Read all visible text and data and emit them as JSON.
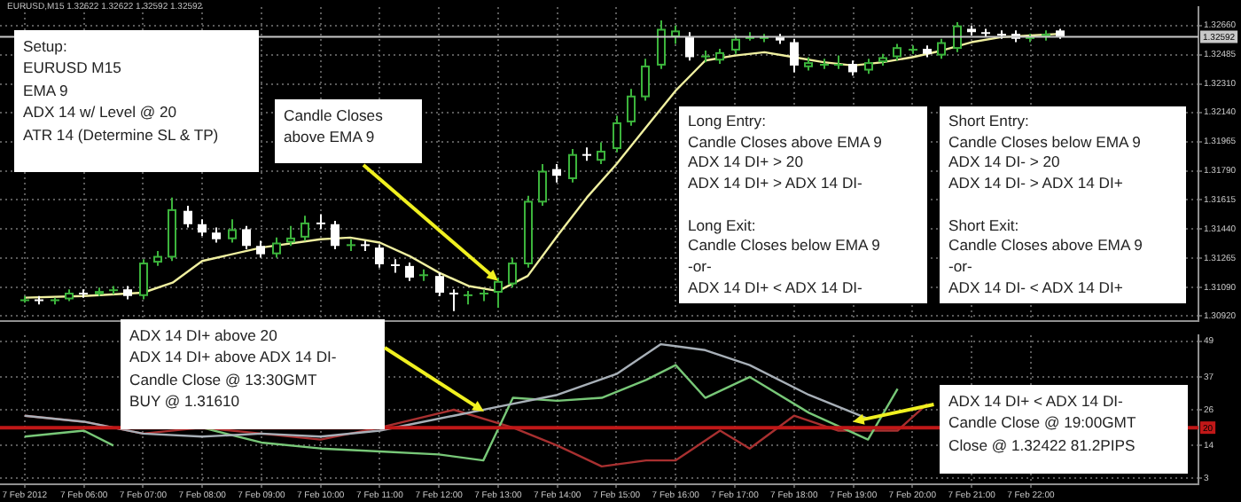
{
  "chart_data": [
    {
      "type": "candlestick",
      "title": "EURUSD,M15 1.32622 1.32622 1.32592 1.32592",
      "x": [
        "2012-02-07T05:00",
        "2012-02-07T05:15",
        "2012-02-07T05:30",
        "2012-02-07T05:45",
        "2012-02-07T06:00",
        "2012-02-07T06:15",
        "2012-02-07T06:30",
        "2012-02-07T06:45",
        "2012-02-07T07:00",
        "2012-02-07T07:15",
        "2012-02-07T07:30",
        "2012-02-07T07:45",
        "2012-02-07T08:00",
        "2012-02-07T08:15",
        "2012-02-07T08:30",
        "2012-02-07T08:45",
        "2012-02-07T09:00",
        "2012-02-07T09:15",
        "2012-02-07T09:30",
        "2012-02-07T09:45",
        "2012-02-07T10:00",
        "2012-02-07T10:15",
        "2012-02-07T10:30",
        "2012-02-07T10:45",
        "2012-02-07T11:00",
        "2012-02-07T11:15",
        "2012-02-07T11:30",
        "2012-02-07T11:45",
        "2012-02-07T12:00",
        "2012-02-07T12:15",
        "2012-02-07T12:30",
        "2012-02-07T12:45",
        "2012-02-07T13:00",
        "2012-02-07T13:15",
        "2012-02-07T13:30",
        "2012-02-07T13:45",
        "2012-02-07T14:00",
        "2012-02-07T14:15",
        "2012-02-07T14:30",
        "2012-02-07T14:45",
        "2012-02-07T15:00",
        "2012-02-07T15:15",
        "2012-02-07T15:30",
        "2012-02-07T15:45",
        "2012-02-07T16:00",
        "2012-02-07T16:15",
        "2012-02-07T16:30",
        "2012-02-07T16:45",
        "2012-02-07T17:00",
        "2012-02-07T17:15",
        "2012-02-07T17:30",
        "2012-02-07T17:45",
        "2012-02-07T18:00",
        "2012-02-07T18:15",
        "2012-02-07T18:30",
        "2012-02-07T18:45",
        "2012-02-07T19:00",
        "2012-02-07T19:15",
        "2012-02-07T19:30",
        "2012-02-07T19:45",
        "2012-02-07T20:00",
        "2012-02-07T20:15",
        "2012-02-07T20:30",
        "2012-02-07T20:45",
        "2012-02-07T21:00",
        "2012-02-07T21:15",
        "2012-02-07T21:30",
        "2012-02-07T21:45",
        "2012-02-07T22:00",
        "2012-02-07T22:15",
        "2012-02-07T22:30"
      ],
      "ohlc": [
        [
          1.3102,
          1.3104,
          1.31,
          1.3102
        ],
        [
          1.3102,
          1.3104,
          1.3099,
          1.3101
        ],
        [
          1.3101,
          1.3103,
          1.3099,
          1.3102
        ],
        [
          1.3102,
          1.3108,
          1.3101,
          1.3106
        ],
        [
          1.3106,
          1.3108,
          1.3103,
          1.3105
        ],
        [
          1.3105,
          1.3109,
          1.3104,
          1.3107
        ],
        [
          1.3107,
          1.311,
          1.3105,
          1.3108
        ],
        [
          1.3108,
          1.311,
          1.3102,
          1.3104
        ],
        [
          1.3104,
          1.3126,
          1.3102,
          1.3124
        ],
        [
          1.3124,
          1.3131,
          1.3122,
          1.3128
        ],
        [
          1.3127,
          1.3163,
          1.3125,
          1.3156
        ],
        [
          1.3155,
          1.3158,
          1.3145,
          1.3147
        ],
        [
          1.3147,
          1.315,
          1.314,
          1.3142
        ],
        [
          1.3142,
          1.3145,
          1.3136,
          1.3138
        ],
        [
          1.3138,
          1.315,
          1.3136,
          1.3144
        ],
        [
          1.3144,
          1.3146,
          1.3132,
          1.3134
        ],
        [
          1.3134,
          1.3137,
          1.3127,
          1.3129
        ],
        [
          1.3129,
          1.3139,
          1.3127,
          1.3136
        ],
        [
          1.3136,
          1.3146,
          1.3134,
          1.3139
        ],
        [
          1.3139,
          1.3152,
          1.3137,
          1.3148
        ],
        [
          1.3148,
          1.3153,
          1.3144,
          1.3147
        ],
        [
          1.3147,
          1.3149,
          1.3132,
          1.3134
        ],
        [
          1.3134,
          1.3138,
          1.3131,
          1.3135
        ],
        [
          1.3135,
          1.3137,
          1.3131,
          1.3134
        ],
        [
          1.3133,
          1.3135,
          1.3121,
          1.3123
        ],
        [
          1.3123,
          1.3126,
          1.3118,
          1.3122
        ],
        [
          1.3122,
          1.3124,
          1.3113,
          1.3115
        ],
        [
          1.3116,
          1.312,
          1.3113,
          1.3117
        ],
        [
          1.3116,
          1.3118,
          1.3104,
          1.3106
        ],
        [
          1.3106,
          1.3108,
          1.3095,
          1.3105
        ],
        [
          1.3104,
          1.3107,
          1.3099,
          1.3105
        ],
        [
          1.3105,
          1.3108,
          1.3101,
          1.3106
        ],
        [
          1.3106,
          1.3115,
          1.3097,
          1.3113
        ],
        [
          1.3111,
          1.3127,
          1.3109,
          1.3124
        ],
        [
          1.3123,
          1.3164,
          1.3121,
          1.3161
        ],
        [
          1.316,
          1.3183,
          1.3158,
          1.3179
        ],
        [
          1.318,
          1.3183,
          1.3172,
          1.3176
        ],
        [
          1.3174,
          1.3192,
          1.3172,
          1.3189
        ],
        [
          1.3189,
          1.3193,
          1.3185,
          1.3188
        ],
        [
          1.3185,
          1.3196,
          1.3183,
          1.3191
        ],
        [
          1.3192,
          1.3212,
          1.319,
          1.3208
        ],
        [
          1.3208,
          1.3228,
          1.3206,
          1.3224
        ],
        [
          1.3223,
          1.3246,
          1.3221,
          1.3242
        ],
        [
          1.3242,
          1.3269,
          1.324,
          1.3264
        ],
        [
          1.3259,
          1.3266,
          1.3255,
          1.3263
        ],
        [
          1.3259,
          1.3262,
          1.3245,
          1.3247
        ],
        [
          1.3247,
          1.3251,
          1.3244,
          1.3248
        ],
        [
          1.3245,
          1.3252,
          1.3243,
          1.325
        ],
        [
          1.3251,
          1.326,
          1.3249,
          1.3258
        ],
        [
          1.3259,
          1.3262,
          1.3257,
          1.3259
        ],
        [
          1.3259,
          1.3261,
          1.3256,
          1.3259
        ],
        [
          1.3259,
          1.3261,
          1.3255,
          1.3257
        ],
        [
          1.3256,
          1.3258,
          1.3238,
          1.3242
        ],
        [
          1.3241,
          1.3247,
          1.3239,
          1.3244
        ],
        [
          1.3243,
          1.3246,
          1.324,
          1.3243
        ],
        [
          1.3243,
          1.3248,
          1.324,
          1.3243
        ],
        [
          1.3243,
          1.3245,
          1.3236,
          1.3238
        ],
        [
          1.3239,
          1.3246,
          1.3237,
          1.3244
        ],
        [
          1.3244,
          1.3249,
          1.3242,
          1.3247
        ],
        [
          1.3247,
          1.3255,
          1.3245,
          1.3253
        ],
        [
          1.3251,
          1.3254,
          1.3249,
          1.3252
        ],
        [
          1.3252,
          1.3254,
          1.3247,
          1.3249
        ],
        [
          1.3248,
          1.3258,
          1.3246,
          1.3256
        ],
        [
          1.3252,
          1.3268,
          1.325,
          1.3266
        ],
        [
          1.3264,
          1.3266,
          1.326,
          1.3262
        ],
        [
          1.3262,
          1.3264,
          1.3259,
          1.3261
        ],
        [
          1.3261,
          1.3263,
          1.3258,
          1.326
        ],
        [
          1.3261,
          1.3263,
          1.3256,
          1.3258
        ],
        [
          1.3258,
          1.3261,
          1.3256,
          1.3259
        ],
        [
          1.3259,
          1.3263,
          1.3257,
          1.3261
        ],
        [
          1.3263,
          1.3264,
          1.3258,
          1.3259
        ]
      ],
      "colors": [
        "#3cb43c",
        "#ffffff",
        "#3cb43c",
        "#3cb43c",
        "#ffffff",
        "#3cb43c",
        "#3cb43c",
        "#ffffff",
        "#3cb43c",
        "#3cb43c",
        "#3cb43c",
        "#ffffff",
        "#ffffff",
        "#ffffff",
        "#3cb43c",
        "#ffffff",
        "#ffffff",
        "#3cb43c",
        "#3cb43c",
        "#3cb43c",
        "#ffffff",
        "#ffffff",
        "#3cb43c",
        "#ffffff",
        "#ffffff",
        "#ffffff",
        "#ffffff",
        "#3cb43c",
        "#ffffff",
        "#ffffff",
        "#3cb43c",
        "#3cb43c",
        "#3cb43c",
        "#3cb43c",
        "#3cb43c",
        "#3cb43c",
        "#ffffff",
        "#3cb43c",
        "#ffffff",
        "#3cb43c",
        "#3cb43c",
        "#3cb43c",
        "#3cb43c",
        "#3cb43c",
        "#3cb43c",
        "#ffffff",
        "#3cb43c",
        "#3cb43c",
        "#3cb43c",
        "#3cb43c",
        "#3cb43c",
        "#ffffff",
        "#ffffff",
        "#3cb43c",
        "#3cb43c",
        "#3cb43c",
        "#ffffff",
        "#3cb43c",
        "#3cb43c",
        "#3cb43c",
        "#3cb43c",
        "#ffffff",
        "#3cb43c",
        "#3cb43c",
        "#ffffff",
        "#ffffff",
        "#ffffff",
        "#ffffff",
        "#3cb43c",
        "#3cb43c",
        "#ffffff"
      ],
      "series": [
        {
          "type": "line",
          "color": "#f0f0a0",
          "x": [
            "2012-02-07T05:00",
            "2012-02-07T06:00",
            "2012-02-07T07:00",
            "2012-02-07T07:30",
            "2012-02-07T08:00",
            "2012-02-07T09:00",
            "2012-02-07T10:00",
            "2012-02-07T10:30",
            "2012-02-07T11:00",
            "2012-02-07T11:30",
            "2012-02-07T12:00",
            "2012-02-07T12:30",
            "2012-02-07T13:00",
            "2012-02-07T13:30",
            "2012-02-07T14:00",
            "2012-02-07T14:30",
            "2012-02-07T15:00",
            "2012-02-07T15:30",
            "2012-02-07T16:00",
            "2012-02-07T16:30",
            "2012-02-07T17:00",
            "2012-02-07T17:30",
            "2012-02-07T18:00",
            "2012-02-07T18:30",
            "2012-02-07T19:00",
            "2012-02-07T19:30",
            "2012-02-07T20:00",
            "2012-02-07T20:30",
            "2012-02-07T21:00",
            "2012-02-07T21:30",
            "2012-02-07T22:00",
            "2012-02-07T22:30"
          ],
          "values": [
            1.3103,
            1.3104,
            1.3106,
            1.3112,
            1.3125,
            1.3133,
            1.3138,
            1.3139,
            1.3136,
            1.3128,
            1.3118,
            1.311,
            1.3107,
            1.3116,
            1.314,
            1.3163,
            1.3183,
            1.3205,
            1.3227,
            1.3245,
            1.3248,
            1.325,
            1.3247,
            1.3244,
            1.3242,
            1.3244,
            1.3247,
            1.3251,
            1.3256,
            1.3259,
            1.326,
            1.3261
          ]
        }
      ],
      "marker": "none",
      "xlim": [
        "2012-02-07T04:35",
        "2012-02-08T00:50"
      ],
      "xticks": [
        {
          "value": "2012-02-07T05:00",
          "label": null
        },
        {
          "value": "2012-02-07T06:00",
          "label": null
        },
        {
          "value": "2012-02-07T07:00",
          "label": null
        },
        {
          "value": "2012-02-07T08:00",
          "label": null
        },
        {
          "value": "2012-02-07T09:00",
          "label": null
        },
        {
          "value": "2012-02-07T10:00",
          "label": null
        },
        {
          "value": "2012-02-07T11:00",
          "label": null
        },
        {
          "value": "2012-02-07T12:00",
          "label": null
        },
        {
          "value": "2012-02-07T13:00",
          "label": null
        },
        {
          "value": "2012-02-07T14:00",
          "label": null
        },
        {
          "value": "2012-02-07T15:00",
          "label": null
        },
        {
          "value": "2012-02-07T16:00",
          "label": null
        },
        {
          "value": "2012-02-07T17:00",
          "label": null
        },
        {
          "value": "2012-02-07T18:00",
          "label": null
        },
        {
          "value": "2012-02-07T19:00",
          "label": null
        },
        {
          "value": "2012-02-07T20:00",
          "label": null
        },
        {
          "value": "2012-02-07T21:00",
          "label": null
        },
        {
          "value": "2012-02-07T22:00",
          "label": null
        }
      ],
      "ylim": [
        1.3089,
        1.3277
      ],
      "yticks": [
        {
          "value": 1.3092,
          "label": "1.30920"
        },
        {
          "value": 1.3109,
          "label": "1.31090"
        },
        {
          "value": 1.31265,
          "label": "1.31265"
        },
        {
          "value": 1.3144,
          "label": "1.31440"
        },
        {
          "value": 1.31615,
          "label": "1.31615"
        },
        {
          "value": 1.3179,
          "label": "1.31790"
        },
        {
          "value": 1.31965,
          "label": "1.31965"
        },
        {
          "value": 1.3214,
          "label": "1.32140"
        },
        {
          "value": 1.3231,
          "label": "1.32310"
        },
        {
          "value": 1.32485,
          "label": "1.32485"
        },
        {
          "value": 1.3266,
          "label": "1.32660"
        }
      ],
      "grid": true,
      "tick_labels": "y",
      "ref_lines": [
        {
          "axis": "y",
          "value": 1.32592,
          "label": "1.32592",
          "color": "#c8c8c8"
        }
      ],
      "annotations": [
        "Setup:\nEURUSD M15\nEMA 9\nADX 14 w/ Level @ 20\nATR 14 (Determine SL & TP)",
        {
          "text": "Candle Closes\nabove EMA 9",
          "x": "2012-02-07T13:00",
          "y": 1.3113
        },
        "Long Entry:\nCandle Closes above EMA 9\nADX 14 DI+ > 20\nADX 14 DI+ > ADX 14 DI-\n\nLong Exit:\nCandle Closes below EMA 9\n-or-\nADX 14 DI+ < ADX 14 DI-",
        "Short Entry:\nCandle Closes below EMA 9\nADX 14 DI- > 20\nADX 14 DI- > ADX 14 DI+\n\nShort Exit:\nCandle Closes above EMA 9\n-or-\nADX 14 DI- < ADX 14 DI+"
      ]
    },
    {
      "type": "line",
      "series": [
        {
          "color": "#a8b0b8",
          "x": [
            "2012-02-07T05:00",
            "2012-02-07T06:00",
            "2012-02-07T07:00",
            "2012-02-07T08:00",
            "2012-02-07T09:00",
            "2012-02-07T10:00",
            "2012-02-07T11:00",
            "2012-02-07T12:15",
            "2012-02-07T13:00",
            "2012-02-07T14:00",
            "2012-02-07T15:00",
            "2012-02-07T15:45",
            "2012-02-07T16:30",
            "2012-02-07T17:15",
            "2012-02-07T18:15",
            "2012-02-07T19:15"
          ],
          "values": [
            24,
            22,
            18,
            17,
            18,
            17,
            19,
            24,
            27,
            31,
            38,
            48,
            46,
            41,
            31,
            23
          ]
        },
        {
          "color": "#78c878",
          "x": [
            "2012-02-07T05:00",
            "2012-02-07T06:00",
            "2012-02-07T06:30",
            "2012-02-07T07:00",
            "2012-02-07T07:30",
            "2012-02-07T08:00",
            "2012-02-07T09:00",
            "2012-02-07T10:00",
            "2012-02-07T11:00",
            "2012-02-07T12:00",
            "2012-02-07T12:45",
            "2012-02-07T13:15",
            "2012-02-07T14:00",
            "2012-02-07T14:45",
            "2012-02-07T15:30",
            "2012-02-07T16:00",
            "2012-02-07T16:30",
            "2012-02-07T17:15",
            "2012-02-07T18:15",
            "2012-02-07T19:15",
            "2012-02-07T19:45"
          ],
          "values": [
            17,
            19,
            14,
            null,
            null,
            20,
            15,
            13,
            12,
            11,
            9,
            30,
            29,
            30,
            36,
            41,
            30,
            37,
            25,
            16,
            33
          ]
        },
        {
          "color": "#a83030",
          "x": [
            "2012-02-07T05:00",
            "2012-02-07T06:00",
            "2012-02-07T07:00",
            "2012-02-07T08:00",
            "2012-02-07T09:00",
            "2012-02-07T10:00",
            "2012-02-07T11:00",
            "2012-02-07T12:15",
            "2012-02-07T13:15",
            "2012-02-07T14:00",
            "2012-02-07T14:45",
            "2012-02-07T15:30",
            "2012-02-07T16:00",
            "2012-02-07T16:45",
            "2012-02-07T17:15",
            "2012-02-07T18:00",
            "2012-02-07T18:45",
            "2012-02-07T19:45",
            "2012-02-07T20:15"
          ],
          "values": [
            24,
            22,
            18,
            20,
            18,
            16,
            20,
            26,
            20,
            14,
            7,
            9,
            9,
            19,
            13,
            24,
            19,
            19,
            28
          ]
        }
      ],
      "marker": "none",
      "xlim": [
        "2012-02-07T04:35",
        "2012-02-08T00:50"
      ],
      "xticks": [
        {
          "value": "2012-02-07T05:00",
          "label": "7 Feb 2012"
        },
        {
          "value": "2012-02-07T06:00",
          "label": "7 Feb 06:00"
        },
        {
          "value": "2012-02-07T07:00",
          "label": "7 Feb 07:00"
        },
        {
          "value": "2012-02-07T08:00",
          "label": "7 Feb 08:00"
        },
        {
          "value": "2012-02-07T09:00",
          "label": "7 Feb 09:00"
        },
        {
          "value": "2012-02-07T10:00",
          "label": "7 Feb 10:00"
        },
        {
          "value": "2012-02-07T11:00",
          "label": "7 Feb 11:00"
        },
        {
          "value": "2012-02-07T12:00",
          "label": "7 Feb 12:00"
        },
        {
          "value": "2012-02-07T13:00",
          "label": "7 Feb 13:00"
        },
        {
          "value": "2012-02-07T14:00",
          "label": "7 Feb 14:00"
        },
        {
          "value": "2012-02-07T15:00",
          "label": "7 Feb 15:00"
        },
        {
          "value": "2012-02-07T16:00",
          "label": "7 Feb 16:00"
        },
        {
          "value": "2012-02-07T17:00",
          "label": "7 Feb 17:00"
        },
        {
          "value": "2012-02-07T18:00",
          "label": "7 Feb 18:00"
        },
        {
          "value": "2012-02-07T19:00",
          "label": "7 Feb 19:00"
        },
        {
          "value": "2012-02-07T20:00",
          "label": "7 Feb 20:00"
        },
        {
          "value": "2012-02-07T21:00",
          "label": "7 Feb 21:00"
        },
        {
          "value": "2012-02-07T22:00",
          "label": "7 Feb 22:00"
        }
      ],
      "ylim": [
        1,
        51
      ],
      "yticks": [
        3,
        14,
        26,
        37,
        49
      ],
      "grid": true,
      "ref_lines": [
        {
          "axis": "y",
          "value": 20,
          "label": "20",
          "color": "#c01818"
        }
      ],
      "annotations": [
        "ADX 14 DI+ above 20\nADX 14 DI+ above ADX 14 DI-\nCandle Close @ 13:30GMT\nBUY @ 1.31610",
        {
          "text": "ADX 14 DI+ < ADX 14 DI-\nCandle Close @ 19:00GMT\nClose @ 1.32422 81.2PIPS",
          "x": "2012-02-07T19:00",
          "y": 22
        }
      ]
    }
  ]
}
